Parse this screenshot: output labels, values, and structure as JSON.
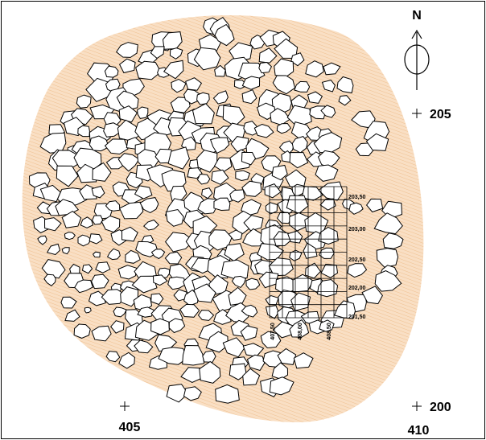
{
  "north": "N",
  "coordinates": {
    "northing": [
      "205",
      "200"
    ],
    "easting": [
      "405",
      "410"
    ]
  },
  "grid": {
    "northing_labels": [
      "203,50",
      "203,00",
      "202,50",
      "202,00",
      "201,50"
    ],
    "easting_labels": [
      "407,50",
      "408,00",
      "408,50"
    ]
  }
}
